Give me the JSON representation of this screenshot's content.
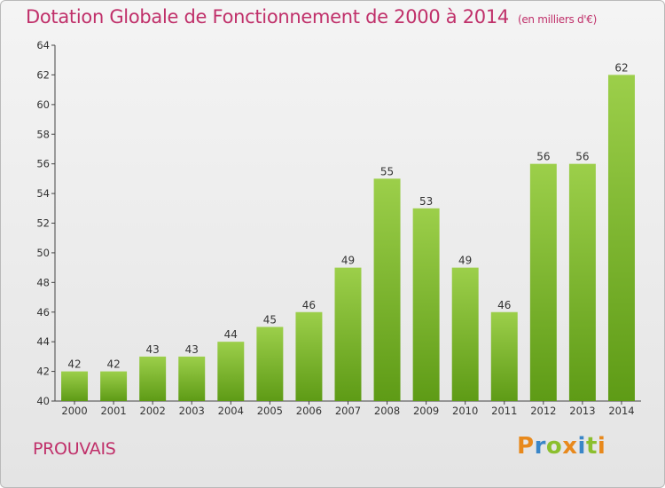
{
  "chart_data": {
    "type": "bar",
    "title": "Dotation Globale de Fonctionnement de 2000 à 2014",
    "unit": "(en milliers d'€)",
    "categories": [
      "2000",
      "2001",
      "2002",
      "2003",
      "2004",
      "2005",
      "2006",
      "2007",
      "2008",
      "2009",
      "2010",
      "2011",
      "2012",
      "2013",
      "2014"
    ],
    "values": [
      42,
      42,
      43,
      43,
      44,
      45,
      46,
      49,
      55,
      53,
      49,
      46,
      56,
      56,
      62
    ],
    "ylim": [
      40,
      64
    ],
    "yticks": [
      40,
      42,
      44,
      46,
      48,
      50,
      52,
      54,
      56,
      58,
      60,
      62,
      64
    ],
    "grid": false,
    "bar_color": "#7cb82f"
  },
  "commune": "PROUVAIS",
  "logo": {
    "text": "Proxiti",
    "letters": [
      {
        "ch": "P",
        "color": "#e8891c"
      },
      {
        "ch": "r",
        "color": "#3a86c8"
      },
      {
        "ch": "o",
        "color": "#8bbf2e"
      },
      {
        "ch": "x",
        "color": "#e8891c"
      },
      {
        "ch": "i",
        "color": "#3a86c8"
      },
      {
        "ch": "t",
        "color": "#8bbf2e"
      },
      {
        "ch": "i",
        "color": "#e8891c"
      }
    ]
  }
}
